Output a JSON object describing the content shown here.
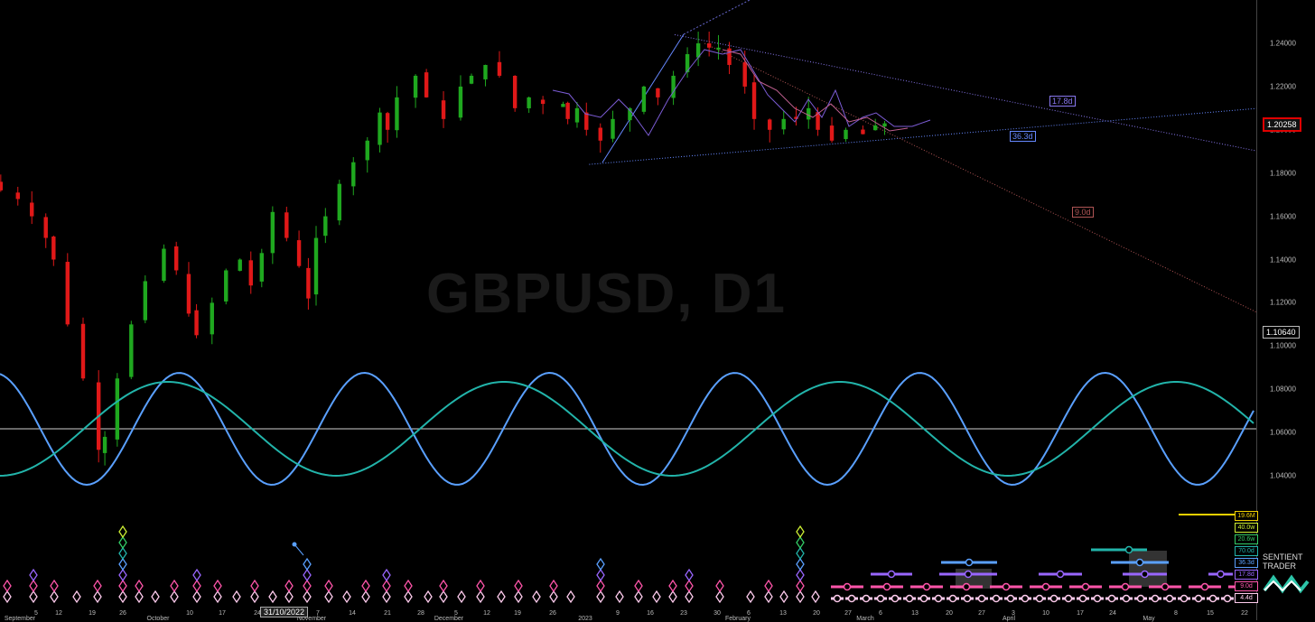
{
  "chart_data": {
    "type": "candlestick",
    "title": "GBPUSD, D1",
    "y_axis": {
      "ticks": [
        "1.24000",
        "1.22000",
        "1.20000",
        "1.18000",
        "1.16000",
        "1.14000",
        "1.12000",
        "1.10000",
        "1.08000",
        "1.06000",
        "1.04000"
      ],
      "range": [
        1.018,
        1.258
      ]
    },
    "current_price": "1.20258",
    "marker_price": "1.10640",
    "x_axis": {
      "dates": [
        "September",
        "5",
        "12",
        "19",
        "26",
        "October",
        "10",
        "17",
        "24",
        "31",
        "November",
        "7",
        "14",
        "21",
        "28",
        "December",
        "5",
        "12",
        "19",
        "26",
        "2023",
        "9",
        "16",
        "23",
        "30",
        "February",
        "6",
        "13",
        "20",
        "27",
        "March",
        "6",
        "13",
        "20",
        "27",
        "April",
        "3",
        "10",
        "17",
        "24",
        "May",
        "8",
        "15",
        "22"
      ],
      "cursor_label": "31/10/2022"
    },
    "candles_close_path": [
      [
        -0.3,
        1.172
      ],
      [
        0.8,
        1.168
      ],
      [
        1.7,
        1.16
      ],
      [
        2.6,
        1.15
      ],
      [
        3.1,
        1.14
      ],
      [
        4.0,
        1.11
      ],
      [
        5.0,
        1.085
      ],
      [
        6.0,
        1.052
      ],
      [
        6.4,
        1.058
      ],
      [
        7.2,
        1.085
      ],
      [
        8.1,
        1.11
      ],
      [
        9.0,
        1.13
      ],
      [
        10.2,
        1.145
      ],
      [
        11.0,
        1.135
      ],
      [
        11.8,
        1.115
      ],
      [
        12.3,
        1.105
      ],
      [
        13.3,
        1.12
      ],
      [
        14.2,
        1.135
      ],
      [
        15.1,
        1.14
      ],
      [
        15.8,
        1.128
      ],
      [
        16.5,
        1.143
      ],
      [
        17.2,
        1.162
      ],
      [
        18.1,
        1.15
      ],
      [
        18.9,
        1.137
      ],
      [
        19.5,
        1.122
      ],
      [
        20.0,
        1.15
      ],
      [
        20.6,
        1.16
      ],
      [
        21.5,
        1.175
      ],
      [
        22.4,
        1.185
      ],
      [
        23.3,
        1.195
      ],
      [
        24.1,
        1.208
      ],
      [
        24.6,
        1.2
      ],
      [
        25.2,
        1.215
      ],
      [
        26.4,
        1.225
      ],
      [
        27.1,
        1.215
      ],
      [
        28.2,
        1.205
      ],
      [
        29.3,
        1.22
      ],
      [
        30.0,
        1.225
      ],
      [
        30.9,
        1.23
      ],
      [
        31.8,
        1.225
      ],
      [
        32.8,
        1.21
      ],
      [
        33.7,
        1.215
      ],
      [
        34.6,
        1.212
      ],
      [
        35.9,
        1.212
      ],
      [
        36.2,
        1.205
      ],
      [
        36.8,
        1.21
      ],
      [
        37.4,
        1.2
      ],
      [
        38.3,
        1.195
      ],
      [
        39.1,
        1.205
      ],
      [
        40.2,
        1.21
      ],
      [
        41.1,
        1.22
      ],
      [
        42.0,
        1.215
      ],
      [
        43.0,
        1.225
      ],
      [
        43.9,
        1.235
      ],
      [
        44.6,
        1.24
      ],
      [
        45.3,
        1.238
      ],
      [
        45.9,
        1.238
      ],
      [
        46.6,
        1.23
      ],
      [
        47.6,
        1.22
      ],
      [
        48.2,
        1.205
      ],
      [
        49.2,
        1.2
      ],
      [
        50.1,
        1.205
      ],
      [
        50.9,
        1.205
      ],
      [
        51.7,
        1.21
      ],
      [
        52.3,
        1.2
      ],
      [
        53.2,
        1.195
      ],
      [
        54.1,
        1.2
      ],
      [
        55.2,
        1.198
      ],
      [
        56.0,
        1.202
      ],
      [
        56.6,
        1.203
      ]
    ],
    "series": [
      {
        "name": "",
        "color": "#5aa0ff",
        "type": "cycle",
        "period_days": 36.3
      },
      {
        "name": "",
        "color": "#22b4aa",
        "type": "cycle",
        "period_days": 70.0
      }
    ],
    "trendlines": [
      {
        "label": "17.8d",
        "color": "#8877ee",
        "from": [
          45.0,
          1.244
        ],
        "to": [
          84.0,
          1.19
        ]
      },
      {
        "label": "36.3d",
        "color": "#6688ff",
        "from": [
          39.3,
          1.184
        ],
        "to": [
          84.0,
          1.21
        ]
      },
      {
        "label": "9.0d",
        "color": "#b05555",
        "from": [
          47.0,
          1.24
        ],
        "to": [
          84.0,
          1.115
        ]
      }
    ],
    "cycle_periods": [
      {
        "label": "19.6M",
        "color": "#f0d000"
      },
      {
        "label": "40.0w",
        "color": "#ccee33"
      },
      {
        "label": "20.6w",
        "color": "#33cc66"
      },
      {
        "label": "70.0d",
        "color": "#22b4aa"
      },
      {
        "label": "36.3d",
        "color": "#5aa0ff"
      },
      {
        "label": "17.8d",
        "color": "#9966ff"
      },
      {
        "label": "9.0d",
        "color": "#ff55aa"
      },
      {
        "label": "4.4d",
        "color": "#ffccee"
      }
    ],
    "grid": false
  },
  "branding": {
    "line1": "SENTIENT",
    "line2": "TRADER"
  }
}
